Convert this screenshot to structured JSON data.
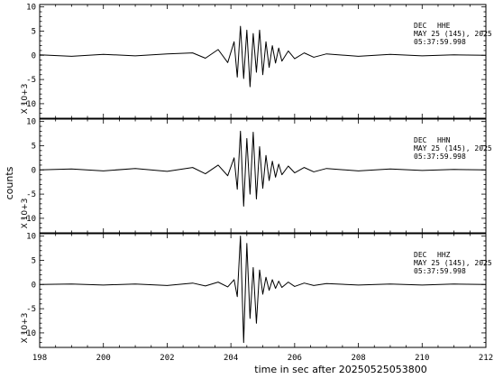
{
  "chart_data": {
    "type": "line",
    "xlabel": "time in sec after 20250525053800",
    "ylabel": "counts",
    "xlim": [
      198,
      212
    ],
    "x_ticks": [
      "198",
      "200",
      "202",
      "204",
      "206",
      "208",
      "210",
      "212"
    ],
    "panels": [
      {
        "station": "DEC",
        "channel": "HHE",
        "date_line": "MAY 25 (145), 2025",
        "time_line": "05:37:59.998",
        "multiplier": "X 10+3",
        "ylim": [
          -13,
          10.5
        ],
        "y_ticks": [
          "10",
          "5",
          "0",
          "-5",
          "-10"
        ],
        "waveform": {
          "x": [
            198,
            199,
            200,
            201,
            202,
            202.8,
            203.2,
            203.6,
            203.9,
            204.1,
            204.2,
            204.3,
            204.4,
            204.5,
            204.6,
            204.7,
            204.8,
            204.9,
            205.0,
            205.1,
            205.2,
            205.3,
            205.4,
            205.5,
            205.6,
            205.8,
            206.0,
            206.3,
            206.6,
            207,
            208,
            209,
            210,
            211,
            212
          ],
          "y": [
            0.1,
            -0.2,
            0.2,
            -0.1,
            0.3,
            0.5,
            -0.6,
            1.2,
            -1.5,
            2.8,
            -4.5,
            6.0,
            -4.8,
            5.2,
            -6.5,
            4.5,
            -3.5,
            5.2,
            -4.0,
            2.8,
            -2.5,
            2.0,
            -1.6,
            1.5,
            -1.2,
            0.9,
            -0.7,
            0.5,
            -0.4,
            0.3,
            -0.2,
            0.2,
            -0.1,
            0.1,
            0.0
          ]
        }
      },
      {
        "station": "DEC",
        "channel": "HHN",
        "date_line": "MAY 25 (145), 2025",
        "time_line": "05:37:59.998",
        "multiplier": "X 10+3",
        "ylim": [
          -13,
          10.5
        ],
        "y_ticks": [
          "10",
          "5",
          "0",
          "-5",
          "-10"
        ],
        "waveform": {
          "x": [
            198,
            199,
            200,
            201,
            202,
            202.8,
            203.2,
            203.6,
            203.9,
            204.1,
            204.2,
            204.3,
            204.4,
            204.5,
            204.6,
            204.7,
            204.8,
            204.9,
            205.0,
            205.1,
            205.2,
            205.3,
            205.4,
            205.5,
            205.6,
            205.8,
            206.0,
            206.3,
            206.6,
            207,
            208,
            209,
            210,
            211,
            212
          ],
          "y": [
            0.0,
            0.2,
            -0.2,
            0.3,
            -0.3,
            0.5,
            -0.8,
            1.0,
            -1.2,
            2.5,
            -4.0,
            8.0,
            -7.5,
            6.5,
            -5.0,
            7.8,
            -6.0,
            4.8,
            -3.8,
            3.0,
            -2.2,
            1.8,
            -1.5,
            1.2,
            -1.0,
            0.8,
            -0.6,
            0.5,
            -0.4,
            0.3,
            -0.2,
            0.2,
            -0.1,
            0.1,
            0.0
          ]
        }
      },
      {
        "station": "DEC",
        "channel": "HHZ",
        "date_line": "MAY 25 (145), 2025",
        "time_line": "05:37:59.998",
        "multiplier": "X 10+3",
        "ylim": [
          -13,
          10.5
        ],
        "y_ticks": [
          "10",
          "5",
          "0",
          "-5",
          "-10"
        ],
        "waveform": {
          "x": [
            198,
            199,
            200,
            201,
            202,
            202.8,
            203.2,
            203.6,
            203.9,
            204.1,
            204.2,
            204.3,
            204.4,
            204.5,
            204.6,
            204.7,
            204.8,
            204.9,
            205.0,
            205.1,
            205.2,
            205.3,
            205.4,
            205.5,
            205.6,
            205.8,
            206.0,
            206.3,
            206.6,
            207,
            208,
            209,
            210,
            211,
            212
          ],
          "y": [
            0.0,
            0.1,
            -0.1,
            0.1,
            -0.2,
            0.3,
            -0.3,
            0.5,
            -0.5,
            1.0,
            -2.5,
            10.0,
            -12.0,
            8.5,
            -7.0,
            3.5,
            -8.0,
            3.0,
            -2.0,
            1.5,
            -1.2,
            1.0,
            -0.8,
            0.7,
            -0.6,
            0.5,
            -0.4,
            0.3,
            -0.2,
            0.2,
            -0.1,
            0.1,
            -0.1,
            0.1,
            0.0
          ]
        }
      }
    ],
    "grid": false,
    "line_color": "#000000"
  }
}
